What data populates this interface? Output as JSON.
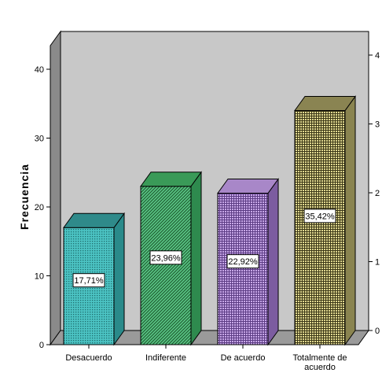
{
  "chart_data": {
    "type": "bar",
    "categories": [
      "Desacuerdo",
      "Indiferente",
      "De acuerdo",
      "Totalmente de acuerdo"
    ],
    "category_lines": [
      [
        "Desacuerdo"
      ],
      [
        "Indiferente"
      ],
      [
        "De acuerdo"
      ],
      [
        "Totalmente de",
        "acuerdo"
      ]
    ],
    "values": [
      17,
      23,
      22,
      34
    ],
    "data_labels": [
      "17,71%",
      "23,96%",
      "22,92%",
      "35,42%"
    ],
    "ylabel": "Frecuencia",
    "ylim": [
      0,
      45
    ],
    "yticks": [
      0,
      10,
      20,
      30,
      40
    ],
    "yticks_right": [
      0,
      10,
      20,
      30,
      40
    ],
    "yticks_right_text": [
      "0",
      "1",
      "2",
      "3",
      "4"
    ],
    "style": "3d",
    "grid": false,
    "colors": {
      "back_wall": "#c8c8c8",
      "floor": "#9a9a9a",
      "side_wall": "#8a8a8a",
      "bars": [
        "#4cc4c4",
        "#44b070",
        "#a07cc8",
        "#c4bc7c"
      ],
      "bar_patterns": [
        "dots",
        "diagonal",
        "grid",
        "grid"
      ]
    }
  }
}
